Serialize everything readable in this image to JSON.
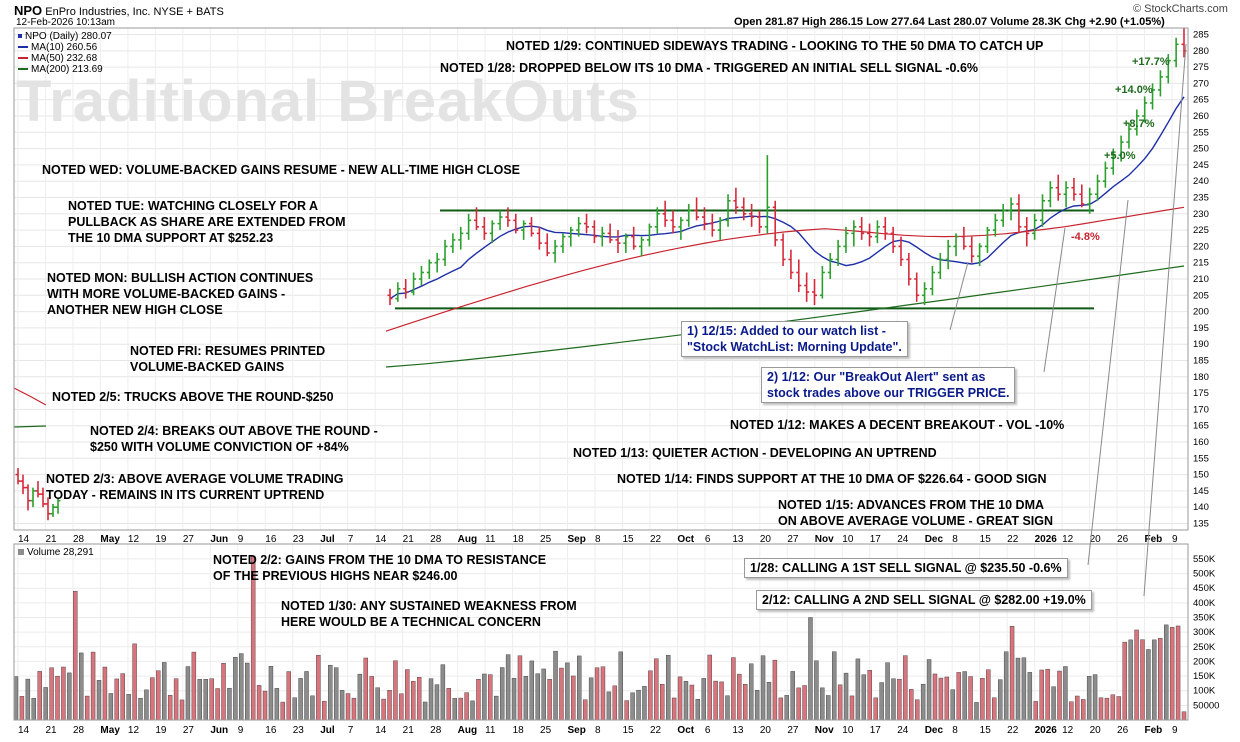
{
  "header": {
    "ticker": "NPO",
    "company": "EnPro Industries, Inc.  NYSE + BATS",
    "date": "12-Feb-2026 10:13am",
    "brand": "© StockCharts.com",
    "quote": "Open 281.87  High 286.15  Low 277.64  Last 280.07  Volume 28.3K  Chg +2.90 (+1.05%)"
  },
  "legend": {
    "price": "NPO (Daily) 280.07",
    "ma10": "MA(10) 260.56",
    "ma50": "MA(50) 232.68",
    "ma200": "MA(200) 213.69",
    "volume": "Volume 28,291"
  },
  "watermark": "Traditional BreakOuts",
  "notes": {
    "n129": "NOTED 1/29: CONTINUED SIDEWAYS TRADING - LOOKING TO THE 50 DMA TO CATCH UP",
    "n128": "NOTED 1/28: DROPPED BELOW ITS 10 DMA - TRIGGERED AN INITIAL SELL SIGNAL  -0.6%",
    "wed": "NOTED WED: VOLUME-BACKED GAINS RESUME - NEW ALL-TIME HIGH CLOSE",
    "tue": [
      "NOTED TUE: WATCHING CLOSELY FOR A",
      "PULLBACK AS SHARE ARE EXTENDED FROM",
      "THE 10 DMA SUPPORT AT $252.23"
    ],
    "mon": [
      "NOTED MON: BULLISH ACTION CONTINUES",
      "WITH MORE VOLUME-BACKED GAINS -",
      "ANOTHER NEW HIGH CLOSE"
    ],
    "fri": [
      "NOTED FRI: RESUMES PRINTED",
      "VOLUME-BACKED GAINS"
    ],
    "n25": "NOTED 2/5: TRUCKS ABOVE THE ROUND-$250",
    "n24": [
      "NOTED 2/4: BREAKS OUT ABOVE THE ROUND -",
      "$250 WITH VOLUME CONVICTION OF +84%"
    ],
    "n23": [
      "NOTED 2/3: ABOVE AVERAGE VOLUME TRADING",
      "TODAY - REMAINS IN ITS CURRENT UPTREND"
    ],
    "n112": "NOTED 1/12: MAKES A DECENT BREAKOUT - VOL -10%",
    "n113": "NOTED 1/13: QUIETER ACTION - DEVELOPING AN UPTREND",
    "n114": "NOTED 1/14: FINDS SUPPORT AT THE 10 DMA OF $226.64 - GOOD SIGN",
    "n115": [
      "NOTED 1/15: ADVANCES FROM THE 10 DMA",
      "ON ABOVE AVERAGE VOLUME - GREAT SIGN"
    ],
    "n22": [
      "NOTED 2/2: GAINS FROM THE 10 DMA TO RESISTANCE",
      "OF THE PREVIOUS HIGHS NEAR $246.00"
    ],
    "n130": [
      "NOTED 1/30: ANY SUSTAINED WEAKNESS FROM",
      "HERE WOULD BE A TECHNICAL CONCERN"
    ]
  },
  "callouts": {
    "c1": [
      "1) 12/15: Added to our watch list -",
      "\"Stock WatchList: Morning Update\"."
    ],
    "c2": [
      "2) 1/12: Our \"BreakOut Alert\" sent as",
      "stock trades above our TRIGGER PRICE."
    ],
    "c3": "1/28: CALLING A 1ST SELL SIGNAL @ $235.50  -0.6%",
    "c4": "2/12: CALLING A 2ND SELL SIGNAL @ $282.00  +19.0%"
  },
  "colors": {
    "up": "#2ca02c",
    "down": "#d62a3b",
    "flat": "#1f2fa8",
    "ma10": "#1f2fa8",
    "ma50": "#c8242f",
    "ma200": "#1e6b1e",
    "level": "#0d5a14",
    "vol_up": "#8c8c8c",
    "vol_down": "#d9737c",
    "pct": "#1e6b1e",
    "pct_down": "#c8242f"
  },
  "chart_data": {
    "type": "ohlc",
    "price_axis": {
      "ticks": [
        135,
        140,
        145,
        150,
        155,
        160,
        165,
        170,
        175,
        180,
        185,
        190,
        195,
        200,
        205,
        210,
        215,
        220,
        225,
        230,
        235,
        240,
        245,
        250,
        255,
        260,
        265,
        270,
        275,
        280,
        285
      ],
      "range": [
        133,
        287
      ]
    },
    "volume_axis": {
      "ticks": [
        "50000",
        "100K",
        "150K",
        "200K",
        "250K",
        "300K",
        "350K",
        "400K",
        "450K",
        "500K",
        "550K"
      ],
      "tick_values": [
        50000,
        100000,
        150000,
        200000,
        250000,
        300000,
        350000,
        400000,
        450000,
        500000,
        550000
      ],
      "range": [
        0,
        560000
      ]
    },
    "x_axis_labels": [
      "14",
      "21",
      "28",
      "May",
      "12",
      "19",
      "27",
      "Jun",
      "9",
      "16",
      "23",
      "Jul",
      "7",
      "14",
      "21",
      "28",
      "Aug",
      "11",
      "18",
      "25",
      "Sep",
      "8",
      "15",
      "22",
      "Oct",
      "6",
      "13",
      "20",
      "27",
      "Nov",
      "10",
      "17",
      "24",
      "Dec",
      "8",
      "15",
      "22",
      "2026",
      "12",
      "20",
      "26",
      "Feb",
      "9"
    ],
    "levels": {
      "resistance": 231,
      "support": 201
    },
    "percent_labels": [
      {
        "text": "+5.0%",
        "date_index": 171,
        "price": 249
      },
      {
        "text": "+8.7%",
        "date_index": 173,
        "price": 257
      },
      {
        "text": "+14.0%",
        "date_index": 171,
        "price": 269
      },
      {
        "text": "+17.7%",
        "date_index": 173,
        "price": 277
      },
      {
        "text": "-4.8%",
        "date_index": 167,
        "price": 225
      }
    ],
    "series": [
      {
        "name": "NPO (Daily)",
        "kind": "ohlc",
        "points": [
          [
            150,
            152,
            147,
            148
          ],
          [
            148,
            150,
            144,
            146
          ],
          [
            146,
            147,
            139,
            142
          ],
          [
            142,
            146,
            140,
            145
          ],
          [
            145,
            148,
            143,
            144
          ],
          [
            144,
            146,
            140,
            141
          ],
          [
            141,
            143,
            136,
            138
          ],
          [
            138,
            141,
            137,
            140
          ],
          [
            140,
            143,
            138,
            142
          ]
        ],
        "recent_points": [
          [
            205,
            207,
            202,
            204
          ],
          [
            204,
            209,
            203,
            207
          ],
          [
            207,
            210,
            204,
            206
          ],
          [
            206,
            212,
            205,
            210
          ],
          [
            210,
            214,
            208,
            212
          ],
          [
            212,
            216,
            210,
            215
          ],
          [
            215,
            218,
            212,
            216
          ],
          [
            216,
            222,
            214,
            220
          ],
          [
            220,
            224,
            218,
            222
          ],
          [
            222,
            226,
            219,
            224
          ],
          [
            224,
            230,
            222,
            228
          ],
          [
            228,
            232,
            225,
            226
          ],
          [
            226,
            229,
            222,
            224
          ],
          [
            224,
            228,
            221,
            227
          ],
          [
            227,
            231,
            225,
            229
          ],
          [
            229,
            232,
            226,
            228
          ],
          [
            228,
            230,
            224,
            225
          ],
          [
            225,
            228,
            222,
            227
          ],
          [
            227,
            229,
            223,
            224
          ],
          [
            224,
            226,
            219,
            221
          ],
          [
            221,
            224,
            217,
            218
          ],
          [
            218,
            222,
            215,
            220
          ],
          [
            220,
            224,
            218,
            223
          ],
          [
            223,
            226,
            220,
            225
          ],
          [
            225,
            229,
            223,
            227
          ],
          [
            227,
            230,
            224,
            226
          ],
          [
            226,
            228,
            221,
            223
          ],
          [
            223,
            226,
            220,
            224
          ],
          [
            224,
            227,
            221,
            222
          ],
          [
            222,
            225,
            218,
            221
          ],
          [
            221,
            224,
            218,
            223
          ],
          [
            223,
            226,
            219,
            220
          ],
          [
            220,
            223,
            217,
            222
          ],
          [
            222,
            227,
            220,
            226
          ],
          [
            226,
            232,
            224,
            230
          ],
          [
            230,
            234,
            226,
            228
          ],
          [
            228,
            231,
            224,
            226
          ],
          [
            226,
            229,
            222,
            228
          ],
          [
            228,
            233,
            226,
            231
          ],
          [
            231,
            235,
            228,
            229
          ],
          [
            229,
            232,
            225,
            227
          ],
          [
            227,
            230,
            223,
            225
          ],
          [
            225,
            229,
            222,
            228
          ],
          [
            228,
            236,
            226,
            234
          ],
          [
            234,
            238,
            230,
            232
          ],
          [
            232,
            235,
            228,
            230
          ],
          [
            230,
            233,
            226,
            229
          ],
          [
            229,
            231,
            224,
            226
          ],
          [
            226,
            248,
            224,
            232
          ],
          [
            232,
            234,
            220,
            222
          ],
          [
            222,
            224,
            214,
            216
          ],
          [
            216,
            219,
            210,
            212
          ],
          [
            212,
            216,
            206,
            208
          ],
          [
            208,
            212,
            203,
            206
          ],
          [
            206,
            210,
            202,
            205
          ],
          [
            205,
            214,
            204,
            212
          ],
          [
            212,
            218,
            210,
            216
          ],
          [
            216,
            222,
            214,
            220
          ],
          [
            220,
            226,
            218,
            224
          ],
          [
            224,
            228,
            220,
            226
          ],
          [
            226,
            229,
            222,
            224
          ],
          [
            224,
            227,
            220,
            223
          ],
          [
            223,
            228,
            221,
            226
          ],
          [
            226,
            229,
            222,
            224
          ],
          [
            224,
            226,
            218,
            220
          ],
          [
            220,
            223,
            214,
            216
          ],
          [
            216,
            218,
            208,
            210
          ],
          [
            210,
            212,
            203,
            205
          ],
          [
            205,
            209,
            202,
            207
          ],
          [
            207,
            214,
            205,
            212
          ],
          [
            212,
            218,
            210,
            216
          ],
          [
            216,
            222,
            213,
            220
          ],
          [
            220,
            224,
            217,
            223
          ],
          [
            223,
            226,
            219,
            220
          ],
          [
            220,
            223,
            215,
            217
          ],
          [
            217,
            221,
            214,
            220
          ],
          [
            220,
            226,
            218,
            225
          ],
          [
            225,
            230,
            223,
            228
          ],
          [
            228,
            233,
            226,
            231
          ],
          [
            231,
            235,
            228,
            233
          ],
          [
            233,
            236,
            224,
            226
          ],
          [
            226,
            229,
            220,
            224
          ],
          [
            224,
            230,
            222,
            228
          ],
          [
            228,
            236,
            226,
            234
          ],
          [
            234,
            240,
            232,
            238
          ],
          [
            238,
            242,
            234,
            236
          ],
          [
            236,
            240,
            232,
            238
          ],
          [
            238,
            241,
            234,
            236
          ],
          [
            236,
            239,
            232,
            233
          ],
          [
            233,
            238,
            230,
            236
          ],
          [
            236,
            242,
            234,
            240
          ],
          [
            240,
            246,
            238,
            244
          ],
          [
            244,
            250,
            242,
            248
          ],
          [
            248,
            254,
            246,
            252
          ],
          [
            252,
            258,
            250,
            256
          ],
          [
            256,
            262,
            254,
            260
          ],
          [
            260,
            266,
            258,
            264
          ],
          [
            264,
            270,
            262,
            268
          ],
          [
            268,
            274,
            266,
            272
          ],
          [
            272,
            279,
            270,
            277
          ],
          [
            277,
            284,
            275,
            282
          ],
          [
            282,
            287,
            278,
            280
          ]
        ]
      }
    ]
  }
}
